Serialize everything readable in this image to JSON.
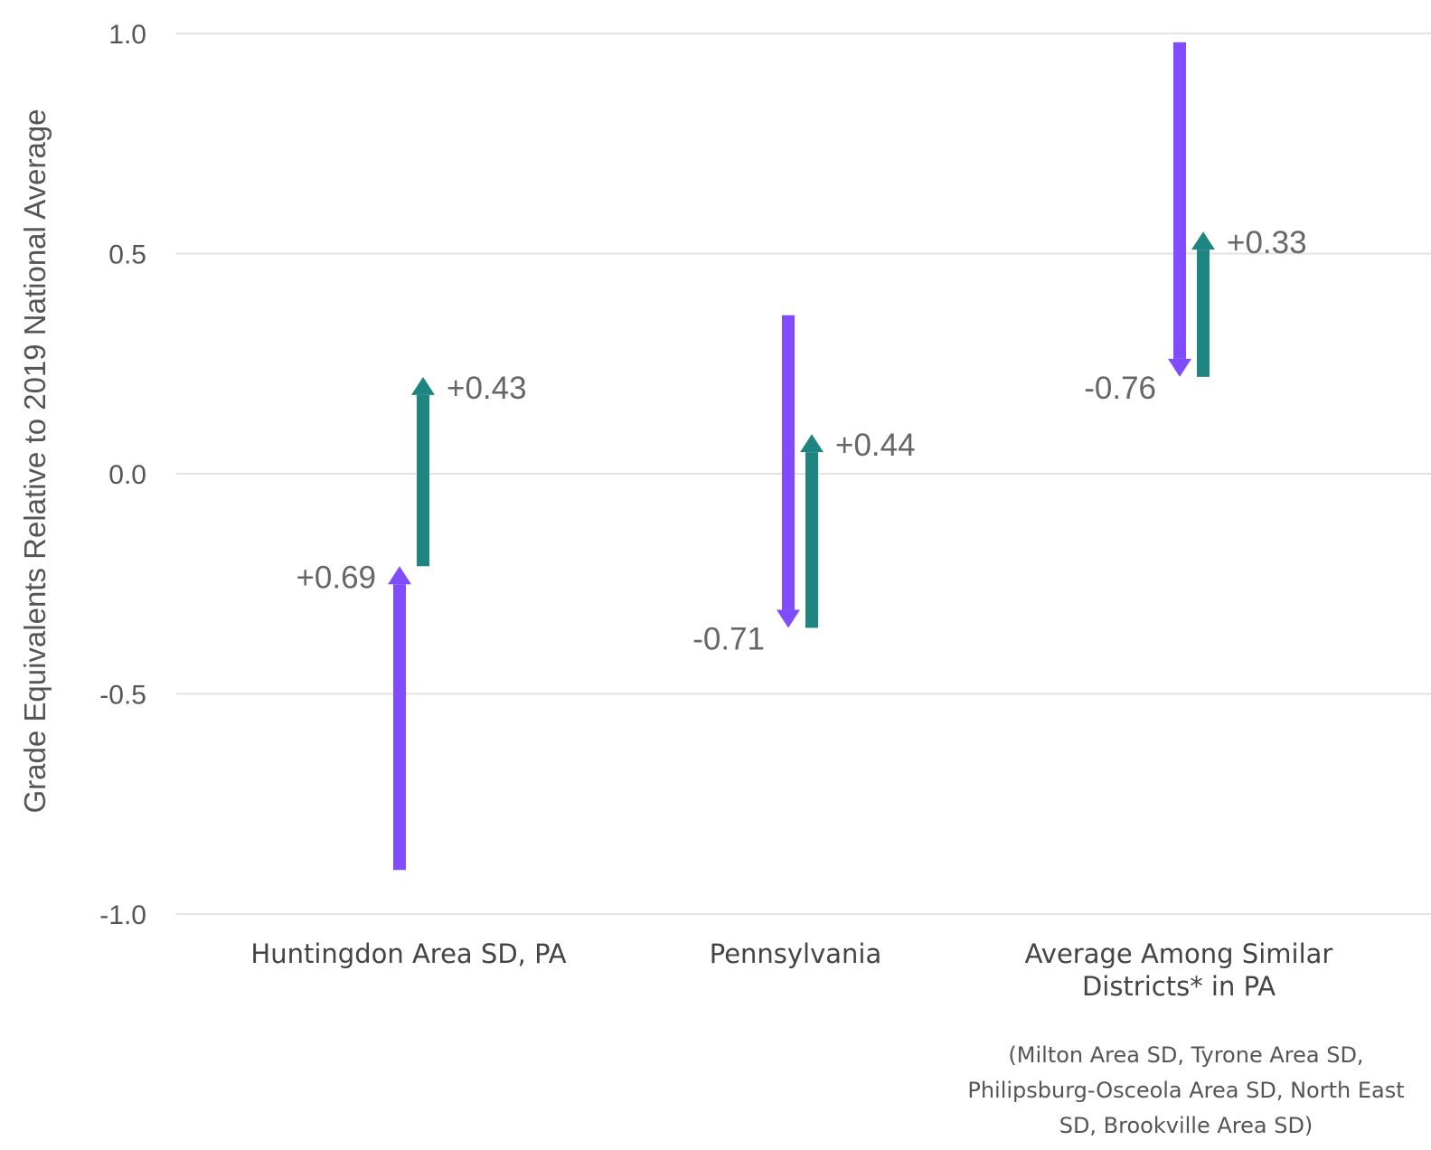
{
  "chart_data": {
    "type": "arrow",
    "title": "",
    "xlabel": "",
    "ylabel": "Grade Equivalents Relative to 2019 National Average",
    "ylim": [
      -1.0,
      1.0
    ],
    "yticks": [
      "1.0",
      "0.5",
      "0.0",
      "-0.5",
      "-1.0"
    ],
    "ytick_values": [
      1.0,
      0.5,
      0.0,
      -0.5,
      -1.0
    ],
    "grid": true,
    "categories": [
      {
        "lines": [
          "Huntingdon Area SD, PA"
        ]
      },
      {
        "lines": [
          "Pennsylvania"
        ]
      },
      {
        "lines": [
          "Average Among Similar",
          "Districts* in PA"
        ],
        "note": [
          "(Milton Area SD, Tyrone Area SD,",
          "Philipsburg-Osceola Area SD, North East",
          "SD, Brookville Area SD)"
        ]
      }
    ],
    "series": [
      {
        "color": "#7f4cff",
        "arrows": [
          {
            "from": -0.9,
            "to": -0.21,
            "label": "+0.69"
          },
          {
            "from": 0.36,
            "to": -0.35,
            "label": "-0.71"
          },
          {
            "from": 0.98,
            "to": 0.22,
            "label": "-0.76"
          }
        ]
      },
      {
        "color": "#1f8580",
        "arrows": [
          {
            "from": -0.21,
            "to": 0.22,
            "label": "+0.43"
          },
          {
            "from": -0.35,
            "to": 0.09,
            "label": "+0.44"
          },
          {
            "from": 0.22,
            "to": 0.55,
            "label": "+0.33"
          }
        ]
      }
    ]
  }
}
